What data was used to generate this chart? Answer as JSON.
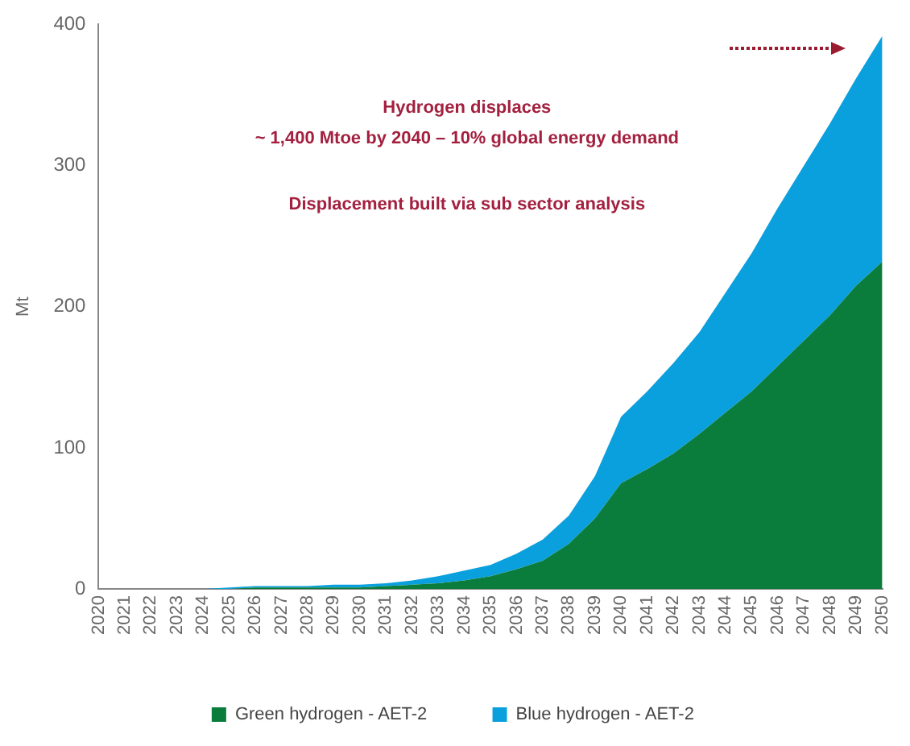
{
  "chart_data": {
    "type": "area",
    "ylabel": "Mt",
    "stacked": true,
    "categories": [
      "2020",
      "2021",
      "2022",
      "2023",
      "2024",
      "2025",
      "2026",
      "2027",
      "2028",
      "2029",
      "2030",
      "2031",
      "2032",
      "2033",
      "2034",
      "2035",
      "2036",
      "2037",
      "2038",
      "2039",
      "2040",
      "2041",
      "2042",
      "2043",
      "2044",
      "2045",
      "2046",
      "2047",
      "2048",
      "2049",
      "2050"
    ],
    "series": [
      {
        "name": "Green hydrogen - AET-2",
        "color": "#0a7d3c",
        "values": [
          0,
          0,
          0,
          0,
          0,
          0,
          1,
          1,
          1,
          1,
          1,
          2,
          3,
          4,
          6,
          9,
          14,
          20,
          32,
          50,
          75,
          85,
          96,
          110,
          125,
          140,
          158,
          176,
          194,
          215,
          232
        ]
      },
      {
        "name": "Blue hydrogen - AET-2",
        "color": "#0aa0de",
        "values": [
          0,
          0,
          0,
          0,
          0,
          1,
          1,
          1,
          1,
          2,
          2,
          2,
          3,
          5,
          7,
          8,
          11,
          15,
          20,
          30,
          47,
          55,
          64,
          72,
          85,
          98,
          112,
          124,
          136,
          147,
          160
        ]
      }
    ],
    "ylim": [
      0,
      400
    ],
    "yticks": [
      0,
      100,
      200,
      300,
      400
    ],
    "grid": false,
    "legend": "bottom",
    "annotations": [
      "Hydrogen displaces",
      "~ 1,400 Mtoe by 2040 – 10% global energy demand",
      "Displacement built via sub sector analysis"
    ]
  }
}
